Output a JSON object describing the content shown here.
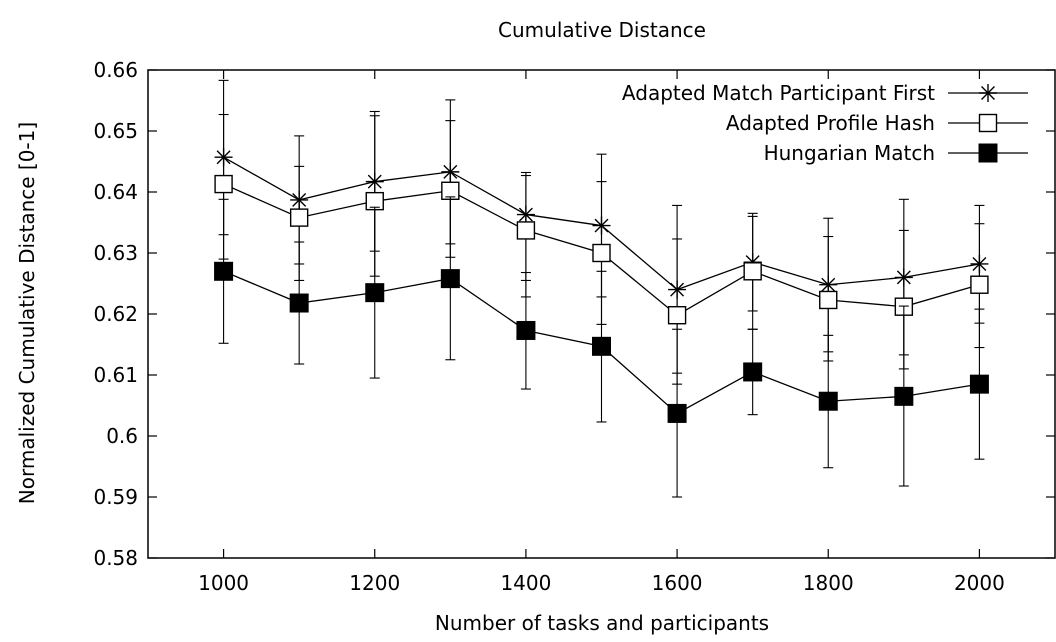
{
  "chart_data": {
    "type": "line",
    "title": "Cumulative Distance",
    "xlabel": "Number of tasks and participants",
    "ylabel": "Normalized Cumulative Distance [0-1]",
    "xlim": [
      900,
      2100
    ],
    "ylim": [
      0.58,
      0.66
    ],
    "x_ticks": [
      1000,
      1200,
      1400,
      1600,
      1800,
      2000
    ],
    "x_tick_labels": [
      "1000",
      "1200",
      "1400",
      "1600",
      "1800",
      "2000"
    ],
    "y_ticks": [
      0.58,
      0.59,
      0.6,
      0.61,
      0.62,
      0.63,
      0.64,
      0.65,
      0.66
    ],
    "y_tick_labels": [
      "0.58",
      "0.59",
      "0.6",
      "0.61",
      "0.62",
      "0.63",
      "0.64",
      "0.65",
      "0.66"
    ],
    "grid": false,
    "legend_position": "top-right",
    "x": [
      1000,
      1100,
      1200,
      1300,
      1400,
      1500,
      1600,
      1700,
      1800,
      1900,
      2000
    ],
    "series": [
      {
        "name": "Adapted Match Participant First",
        "marker": "star",
        "values": [
          0.6457,
          0.6387,
          0.6417,
          0.6433,
          0.6363,
          0.6345,
          0.624,
          0.6285,
          0.6248,
          0.626,
          0.6282
        ],
        "error_low": [
          0.633,
          0.6282,
          0.6303,
          0.6315,
          0.6255,
          0.6228,
          0.6103,
          0.6205,
          0.6138,
          0.6133,
          0.6185
        ],
        "error_high": [
          0.6583,
          0.6492,
          0.6532,
          0.6551,
          0.6432,
          0.6462,
          0.6378,
          0.6365,
          0.6357,
          0.6388,
          0.6378
        ]
      },
      {
        "name": "Adapted Profile Hash",
        "marker": "open-square",
        "values": [
          0.6413,
          0.6358,
          0.6385,
          0.6402,
          0.6337,
          0.63,
          0.6198,
          0.627,
          0.6223,
          0.6212,
          0.6248
        ],
        "error_low": [
          0.629,
          0.6255,
          0.6262,
          0.6293,
          0.6228,
          0.6183,
          0.6085,
          0.6175,
          0.6123,
          0.611,
          0.6145
        ],
        "error_high": [
          0.6527,
          0.6442,
          0.6525,
          0.6517,
          0.6427,
          0.6417,
          0.6323,
          0.636,
          0.6327,
          0.6337,
          0.6348
        ]
      },
      {
        "name": "Hungarian Match",
        "marker": "filled-square",
        "values": [
          0.627,
          0.6218,
          0.6235,
          0.6258,
          0.6173,
          0.6147,
          0.6037,
          0.6105,
          0.6057,
          0.6065,
          0.6085
        ],
        "error_low": [
          0.6152,
          0.6118,
          0.6095,
          0.6125,
          0.6077,
          0.6023,
          0.59,
          0.6035,
          0.5948,
          0.5918,
          0.5962
        ],
        "error_high": [
          0.6388,
          0.6318,
          0.6375,
          0.6392,
          0.6268,
          0.627,
          0.6175,
          0.6175,
          0.6165,
          0.6213,
          0.6208
        ]
      }
    ]
  }
}
